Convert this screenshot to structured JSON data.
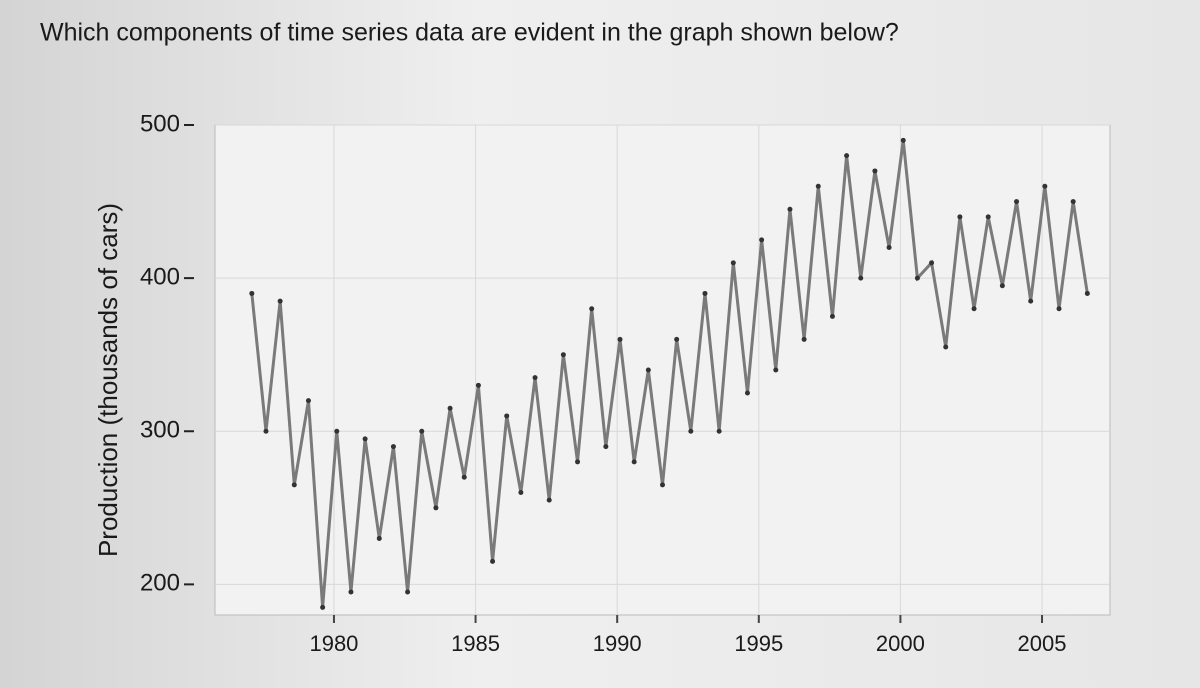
{
  "chart_data": {
    "type": "line",
    "title": "Which components of time series data are evident in the graph shown below?",
    "y_label": "Production (thousands of cars)",
    "x": [
      1977.1,
      1977.6,
      1978.1,
      1978.6,
      1979.1,
      1979.6,
      1980.1,
      1980.6,
      1981.1,
      1981.6,
      1982.1,
      1982.6,
      1983.1,
      1983.6,
      1984.1,
      1984.6,
      1985.1,
      1985.6,
      1986.1,
      1986.6,
      1987.1,
      1987.6,
      1988.1,
      1988.6,
      1989.1,
      1989.6,
      1990.1,
      1990.6,
      1991.1,
      1991.6,
      1992.1,
      1992.6,
      1993.1,
      1993.6,
      1994.1,
      1994.6,
      1995.1,
      1995.6,
      1996.1,
      1996.6,
      1997.1,
      1997.6,
      1998.1,
      1998.6,
      1999.1,
      1999.6,
      2000.1,
      2000.6,
      2001.1,
      2001.6,
      2002.1,
      2002.6,
      2003.1,
      2003.6,
      2004.1,
      2004.6,
      2005.1,
      2005.6,
      2006.1,
      2006.6
    ],
    "values": [
      390,
      300,
      385,
      265,
      320,
      185,
      300,
      195,
      295,
      230,
      290,
      195,
      300,
      250,
      315,
      270,
      330,
      215,
      310,
      260,
      335,
      255,
      350,
      280,
      380,
      290,
      360,
      280,
      340,
      265,
      360,
      300,
      390,
      300,
      410,
      325,
      425,
      340,
      445,
      360,
      460,
      375,
      480,
      400,
      470,
      420,
      490,
      400,
      410,
      355,
      440,
      380,
      440,
      395,
      450,
      385,
      460,
      380,
      450,
      390
    ],
    "color": "#7a7a7a",
    "xlim": [
      1975.8,
      2007.4
    ],
    "xticks": [
      1980,
      1985,
      1990,
      1995,
      2000,
      2005
    ],
    "ylim": [
      180,
      500
    ],
    "yticks": [
      200,
      300,
      400,
      500
    ],
    "grid": true
  }
}
